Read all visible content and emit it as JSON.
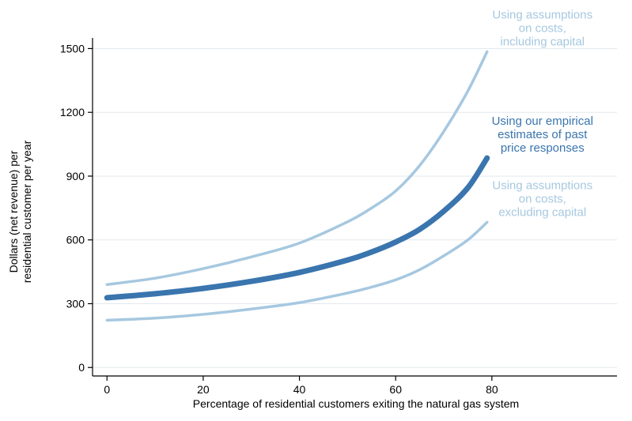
{
  "chart_data": {
    "type": "line",
    "xlabel": "Percentage of residential customers exiting the natural gas system",
    "ylabel_lines": [
      "Dollars (net revenue) per",
      "residential customer per year"
    ],
    "xlim": [
      -3,
      106
    ],
    "ylim": [
      -40,
      1550
    ],
    "x_ticks": [
      0,
      20,
      40,
      60,
      80
    ],
    "y_ticks": [
      0,
      300,
      600,
      900,
      1200,
      1500
    ],
    "grid": "horizontal",
    "series": [
      {
        "key": "including_capital",
        "annotation": [
          "Using assumptions",
          "on costs,",
          "including capital"
        ],
        "color": "#a6c8e0",
        "width": 3.5,
        "x": [
          0,
          10,
          20,
          30,
          40,
          50,
          55,
          60,
          65,
          70,
          75,
          79
        ],
        "y": [
          390,
          420,
          465,
          520,
          585,
          685,
          750,
          830,
          950,
          1110,
          1300,
          1485
        ]
      },
      {
        "key": "empirical",
        "annotation": [
          "Using our empirical",
          "estimates of past",
          "price responses"
        ],
        "color": "#3a75ae",
        "width": 7,
        "x": [
          0,
          10,
          20,
          30,
          40,
          50,
          55,
          60,
          65,
          70,
          75,
          79
        ],
        "y": [
          328,
          347,
          372,
          405,
          447,
          505,
          543,
          590,
          650,
          735,
          845,
          985
        ]
      },
      {
        "key": "excluding_capital",
        "annotation": [
          "Using assumptions",
          "on costs,",
          "excluding capital"
        ],
        "color": "#a6c8e0",
        "width": 3.5,
        "x": [
          0,
          10,
          20,
          30,
          40,
          50,
          55,
          60,
          65,
          70,
          75,
          79
        ],
        "y": [
          222,
          232,
          250,
          275,
          305,
          350,
          378,
          412,
          460,
          525,
          600,
          683
        ]
      }
    ]
  }
}
